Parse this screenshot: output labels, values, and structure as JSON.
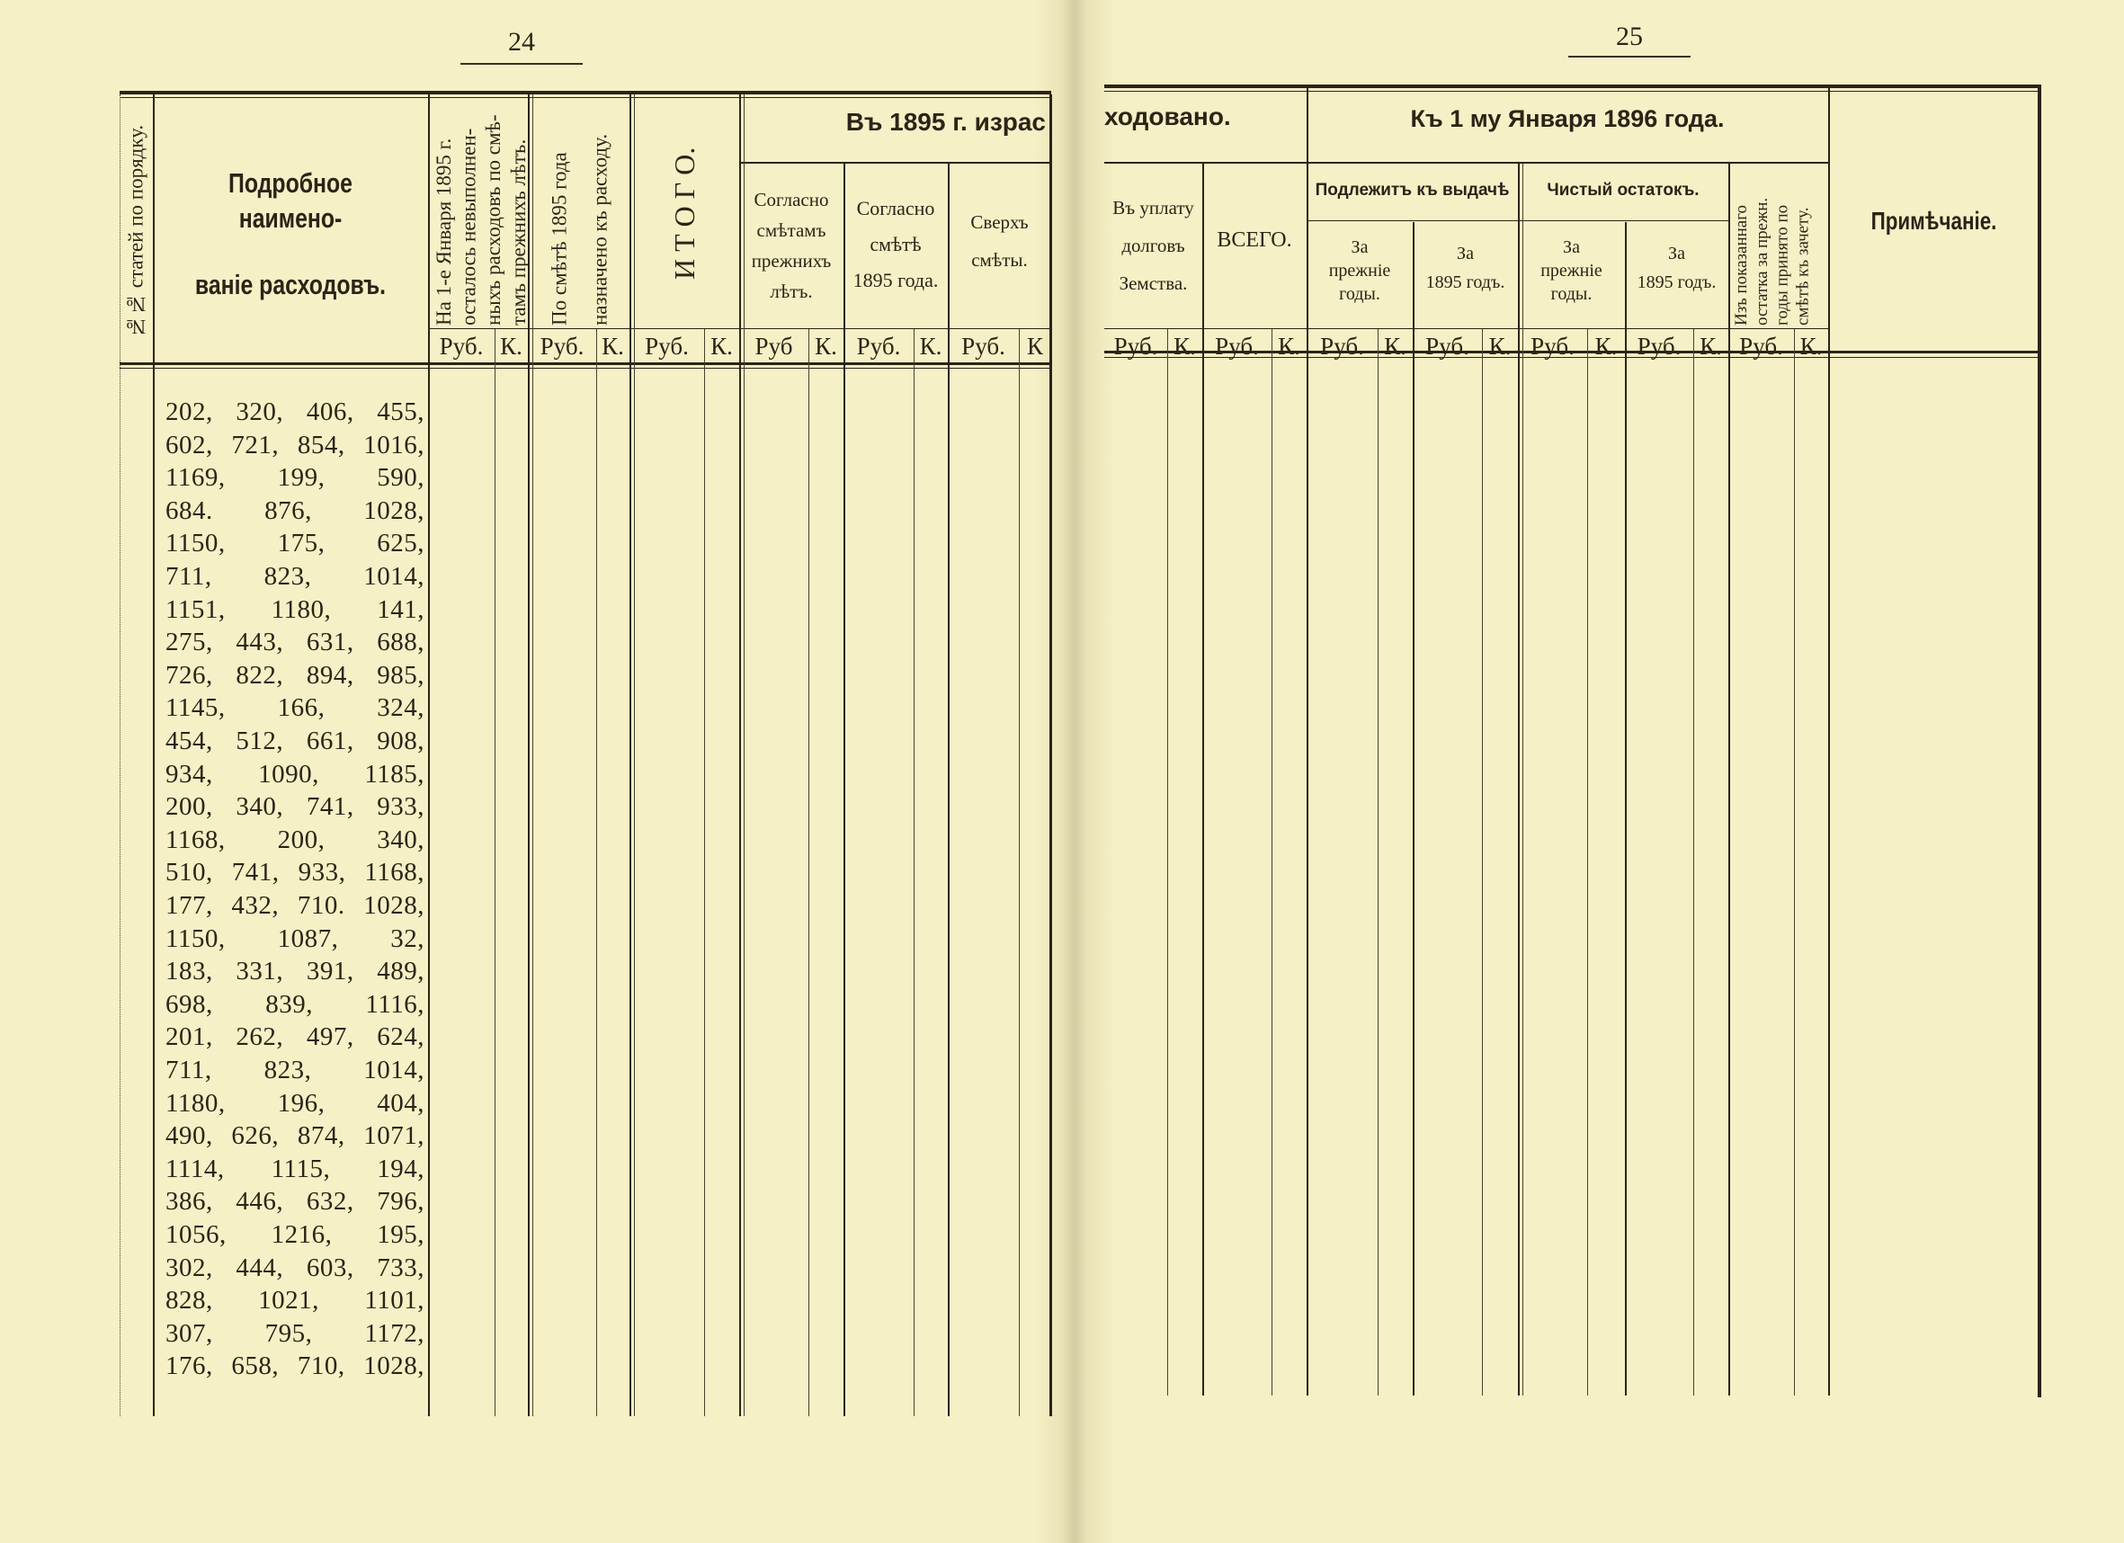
{
  "page_left": {
    "number": "24",
    "headers": {
      "no_col": "№№ статей по порядку.",
      "name_line1": "Подробное наимено-",
      "name_line2": "ваніе расходовъ.",
      "remaining": [
        "На 1-е Января 1895 г.",
        "осталось невыполнен-",
        "ныхъ расходовъ по смѣ-",
        "тамъ прежнихъ лѣтъ."
      ],
      "assigned": [
        "По смѣтѣ 1895 года",
        "назначено къ расходу."
      ],
      "total": "И Т О Г О.",
      "spent_group_part1": "Въ 1895 г. израс",
      "per_prev_estimates": [
        "Согласно",
        "смѣтамъ",
        "прежнихъ",
        "лѣтъ."
      ],
      "per_1895_estimate": [
        "Согласно",
        "смѣтѣ",
        "1895 года."
      ],
      "over_estimate": [
        "Сверхъ",
        "смѣты."
      ]
    },
    "units": [
      "Руб.",
      "К.",
      "Руб.",
      "К.",
      "Руб.",
      "К.",
      "Руб",
      "К.",
      "Руб.",
      "К.",
      "Руб.",
      "К"
    ],
    "number_lines": [
      [
        "202,",
        "320,",
        "406,",
        "455,"
      ],
      [
        "602,",
        "721,",
        "854,",
        "1016,"
      ],
      [
        "1169,",
        "199,",
        "590,"
      ],
      [
        "684.",
        "876,",
        "1028,"
      ],
      [
        "1150,",
        "175,",
        "625,"
      ],
      [
        "711,",
        "823,",
        "1014,"
      ],
      [
        "1151,",
        "1180,",
        "141,"
      ],
      [
        "275,",
        "443,",
        "631,",
        "688,"
      ],
      [
        "726,",
        "822,",
        "894,",
        "985,"
      ],
      [
        "1145,",
        "166,",
        "324,"
      ],
      [
        "454,",
        "512,",
        "661,",
        "908,"
      ],
      [
        "934,",
        "1090,",
        "1185,"
      ],
      [
        "200,",
        "340,",
        "741,",
        "933,"
      ],
      [
        "1168,",
        "200,",
        "340,"
      ],
      [
        "510,",
        "741,",
        "933,",
        "1168,"
      ],
      [
        "177,",
        "432,",
        "710.",
        "1028,"
      ],
      [
        "1150,",
        "1087,",
        "32,"
      ],
      [
        "183,",
        "331,",
        "391,",
        "489,"
      ],
      [
        "698,",
        "839,",
        "1116,"
      ],
      [
        "201,",
        "262,",
        "497,",
        "624,"
      ],
      [
        "711,",
        "823,",
        "1014,"
      ],
      [
        "1180,",
        "196,",
        "404,"
      ],
      [
        "490,",
        "626,",
        "874,",
        "1071,"
      ],
      [
        "1114,",
        "1115,",
        "194,"
      ],
      [
        "386,",
        "446,",
        "632,",
        "796,"
      ],
      [
        "1056,",
        "1216,",
        "195,"
      ],
      [
        "302,",
        "444,",
        "603,",
        "733,"
      ],
      [
        "828,",
        "1021,",
        "1101,"
      ],
      [
        "307,",
        "795,",
        "1172,"
      ],
      [
        "176,",
        "658,",
        "710,",
        "1028,"
      ]
    ]
  },
  "page_right": {
    "number": "25",
    "headers": {
      "spent_group_part2": "ходовано.",
      "debt_payment": [
        "Въ уплату",
        "долговъ",
        "Земства."
      ],
      "all_total": "ВСЕГО.",
      "as_of_group": "Къ 1 му Января 1896 года.",
      "to_be_paid": "Подлежитъ къ выдачѣ",
      "net_balance": "Чистый остатокъ.",
      "prev_years_a": [
        "За",
        "прежніе",
        "годы."
      ],
      "year_1895_a": [
        "За",
        "1895 годъ."
      ],
      "prev_years_b": [
        "За",
        "прежніе",
        "годы."
      ],
      "year_1895_b": [
        "За",
        "1895 годъ."
      ],
      "credited": [
        "Изъ показаннаго",
        "остатка за прежн.",
        "годы принято по",
        "смѣтѣ къ зачету."
      ],
      "note": "Примѣчаніе."
    },
    "units": [
      "Руб.",
      "К.",
      "Руб.",
      "К.",
      "Руб.",
      "К.",
      "Руб.",
      "К.",
      "Руб.",
      "К.",
      "Руб.",
      "К.",
      "Руб.",
      "К."
    ]
  },
  "colors": {
    "paper": "#f6f0c6",
    "ink": "#2b2417"
  }
}
